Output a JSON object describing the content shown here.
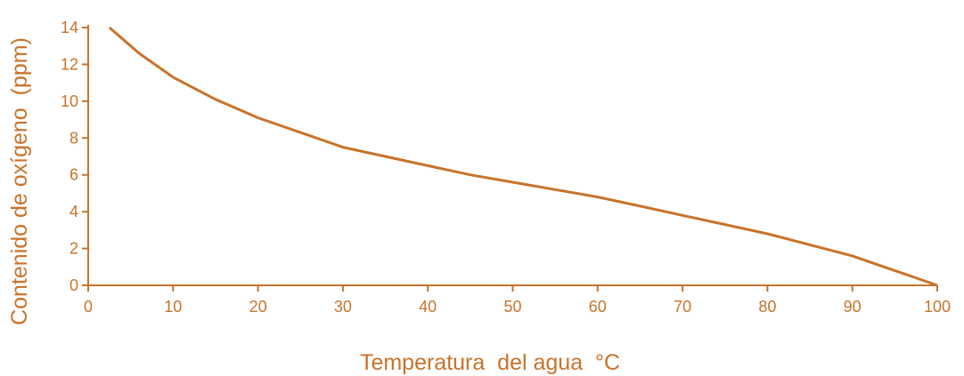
{
  "chart_data": {
    "type": "line",
    "xlabel": "Temperatura  del agua  °C",
    "ylabel": "Contenido de oxígeno  (ppm)",
    "xlim": [
      0,
      100
    ],
    "ylim": [
      0,
      14
    ],
    "x_ticks": [
      "0",
      "10",
      "20",
      "30",
      "40",
      "50",
      "60",
      "70",
      "80",
      "90",
      "100"
    ],
    "y_ticks": [
      "0",
      "2",
      "4",
      "6",
      "8",
      "10",
      "12",
      "14"
    ],
    "grid": false,
    "series": [
      {
        "x": [
          2.5,
          6,
          10,
          15,
          20,
          25,
          30,
          35,
          40,
          45,
          50,
          55,
          60,
          65,
          70,
          75,
          80,
          85,
          90,
          95,
          100
        ],
        "values": [
          14,
          12.6,
          11.3,
          10.1,
          9.1,
          8.3,
          7.5,
          7.0,
          6.5,
          6.0,
          5.6,
          5.2,
          4.8,
          4.3,
          3.8,
          3.3,
          2.8,
          2.2,
          1.6,
          0.8,
          0
        ]
      }
    ],
    "color": "#c8732a"
  }
}
